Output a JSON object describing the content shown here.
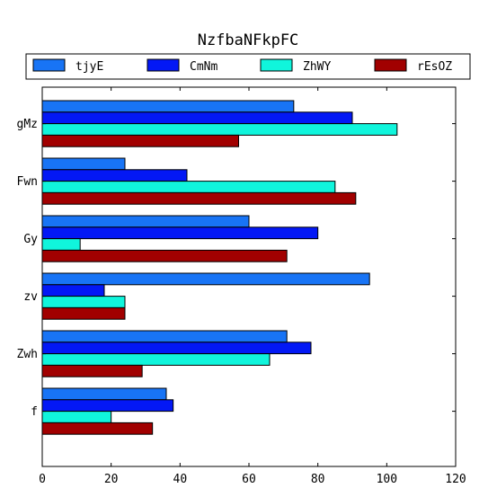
{
  "chart_data": {
    "type": "bar",
    "orientation": "horizontal",
    "title": "NzfbaNFkpFC",
    "xlabel": "",
    "ylabel": "",
    "categories": [
      "gMz",
      "Fwn",
      "Gy",
      "zv",
      "Zwh",
      "f"
    ],
    "xlim": [
      0,
      120
    ],
    "xticks": [
      0,
      20,
      40,
      60,
      80,
      100,
      120
    ],
    "grid": false,
    "legend_position": "top",
    "series": [
      {
        "name": "tjyE",
        "color": "#1874f5",
        "values": [
          73,
          24,
          60,
          95,
          71,
          36
        ]
      },
      {
        "name": "CmNm",
        "color": "#0318f5",
        "values": [
          90,
          42,
          80,
          18,
          78,
          38
        ]
      },
      {
        "name": "ZhWY",
        "color": "#10f5dc",
        "values": [
          103,
          85,
          11,
          24,
          66,
          20
        ]
      },
      {
        "name": "rEsOZ",
        "color": "#a10000",
        "values": [
          57,
          91,
          71,
          24,
          29,
          32
        ]
      }
    ]
  }
}
